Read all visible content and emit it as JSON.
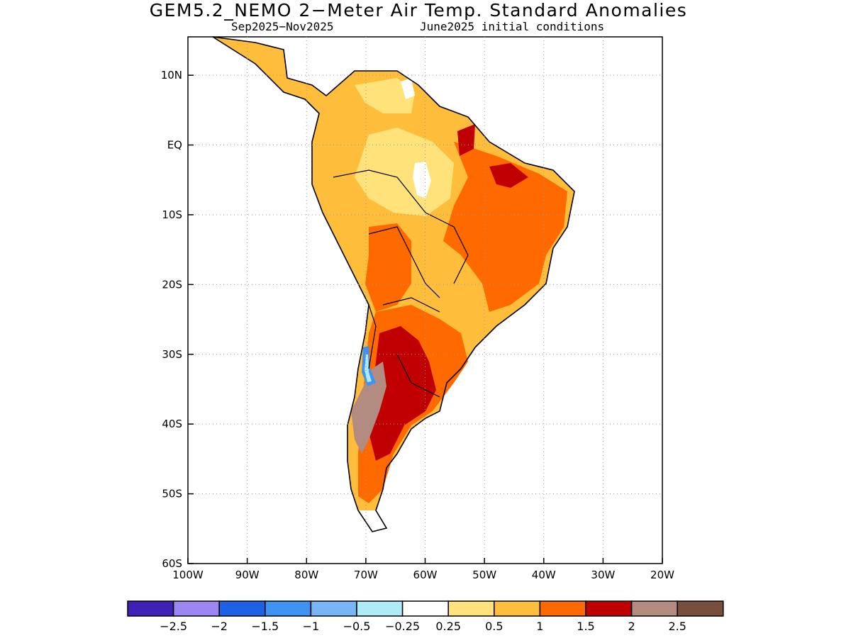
{
  "header": {
    "title": "GEM5.2_NEMO 2−Meter Air Temp. Standard Anomalies",
    "period": "Sep2025−Nov2025",
    "initial_conditions": "June2025 initial conditions"
  },
  "axes": {
    "lat_labels": [
      "10N",
      "EQ",
      "10S",
      "20S",
      "30S",
      "40S",
      "50S",
      "60S"
    ],
    "lat_values": [
      10,
      0,
      -10,
      -20,
      -30,
      -40,
      -50,
      -60
    ],
    "lon_labels": [
      "100W",
      "90W",
      "80W",
      "70W",
      "60W",
      "50W",
      "40W",
      "30W",
      "20W"
    ],
    "lon_values": [
      -100,
      -90,
      -80,
      -70,
      -60,
      -50,
      -40,
      -30,
      -20
    ],
    "lon_range": [
      -100,
      -20
    ],
    "lat_range": [
      -60,
      15.5
    ],
    "grid": "dotted"
  },
  "colorbar": {
    "colors": [
      "#3f21b8",
      "#9b86f2",
      "#1f61e6",
      "#3e93f2",
      "#77b5f6",
      "#aeebf8",
      "#ffffff",
      "#ffe27a",
      "#ffbd3c",
      "#ff6a00",
      "#c00000",
      "#b48b80",
      "#7a4e3e"
    ],
    "labels": [
      "−2.5",
      "−2",
      "−1.5",
      "−1",
      "−0.5",
      "−0.25",
      "0.25",
      "0.5",
      "1",
      "1.5",
      "2",
      "2.5"
    ]
  },
  "chart_data": {
    "type": "heatmap",
    "title": "GEM5.2_NEMO 2−Meter Air Temp. Standard Anomalies",
    "region": "South America",
    "contour_levels": [
      -2.5,
      -2,
      -1.5,
      -1,
      -0.5,
      -0.25,
      0.25,
      0.5,
      1,
      1.5,
      2,
      2.5
    ],
    "anomaly_regions": [
      {
        "area": "Northern Colombia/Venezuela",
        "category": "0.5 to 1"
      },
      {
        "area": "Central Amazon",
        "category": "0.25 to 0.5"
      },
      {
        "area": "Amazon center",
        "category": "-0.25 to 0.25"
      },
      {
        "area": "Northeast Brazil",
        "category": "1.5 to 2"
      },
      {
        "area": "Central Brazil",
        "category": "1 to 1.5"
      },
      {
        "area": "Peru/Bolivia",
        "category": "1 to 1.5"
      },
      {
        "area": "Central Argentina",
        "category": "1.5 to 2"
      },
      {
        "area": "Andes central",
        "category": "2 to 2.5"
      },
      {
        "area": "Central Chile coast",
        "category": "-1.5 to -0.25"
      },
      {
        "area": "Patagonia",
        "category": "1 to 1.5"
      }
    ]
  }
}
